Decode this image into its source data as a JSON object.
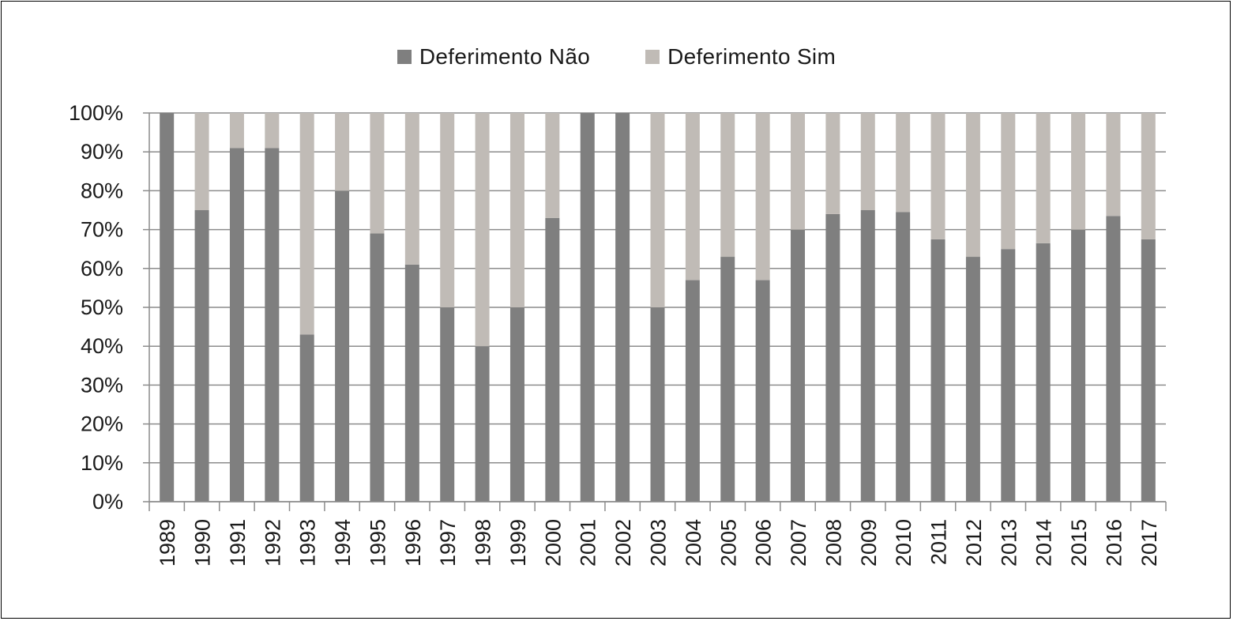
{
  "chart_data": {
    "type": "bar",
    "stacked": true,
    "categories": [
      "1989",
      "1990",
      "1991",
      "1992",
      "1993",
      "1994",
      "1995",
      "1996",
      "1997",
      "1998",
      "1999",
      "2000",
      "2001",
      "2002",
      "2003",
      "2004",
      "2005",
      "2006",
      "2007",
      "2008",
      "2009",
      "2010",
      "2011",
      "2012",
      "2013",
      "2014",
      "2015",
      "2016",
      "2017"
    ],
    "series": [
      {
        "name": "Deferimento Não",
        "color": "#7f7f7f",
        "values": [
          100,
          75,
          91,
          91,
          43,
          80,
          69,
          61,
          50,
          40,
          50,
          73,
          100,
          100,
          50,
          57,
          63,
          57,
          70,
          74,
          75,
          74.5,
          67.5,
          63,
          65,
          66.5,
          70,
          73.5,
          67.5
        ]
      },
      {
        "name": "Deferimento Sim",
        "color": "#c0bbb6",
        "values": [
          0,
          25,
          9,
          9,
          57,
          20,
          31,
          39,
          50,
          60,
          50,
          27,
          0,
          0,
          50,
          43,
          37,
          43,
          30,
          26,
          25,
          25.5,
          32.5,
          37,
          35,
          33.5,
          30,
          26.5,
          32.5
        ]
      }
    ],
    "y_ticks": [
      "0%",
      "10%",
      "20%",
      "30%",
      "40%",
      "50%",
      "60%",
      "70%",
      "80%",
      "90%",
      "100%"
    ],
    "ylim": [
      0,
      100
    ],
    "grid": true,
    "legend_position": "top-center"
  }
}
